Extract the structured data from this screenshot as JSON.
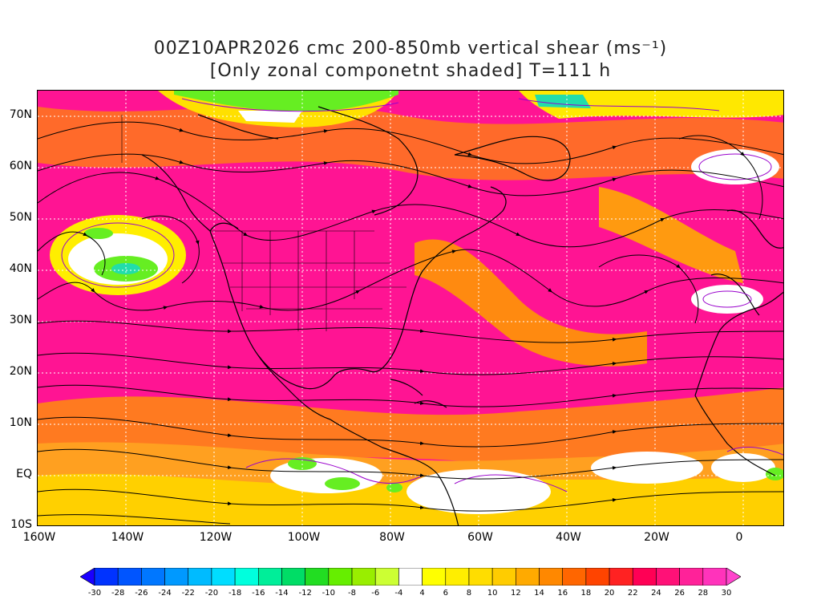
{
  "title_line1": "00Z10APR2026 cmc 200-850mb vertical shear (ms⁻¹)",
  "title_line2": "[Only zonal componetnt shaded] T=111 h",
  "lat_labels": [
    "70N",
    "60N",
    "50N",
    "40N",
    "30N",
    "20N",
    "10N",
    "EQ",
    "10S"
  ],
  "lon_labels": [
    "160W",
    "140W",
    "120W",
    "100W",
    "80W",
    "60W",
    "40W",
    "20W",
    "0"
  ],
  "colorbar": {
    "labels": [
      "-30",
      "-28",
      "-26",
      "-24",
      "-22",
      "-20",
      "-18",
      "-16",
      "-14",
      "-12",
      "-10",
      "-8",
      "-6",
      "-4",
      "4",
      "6",
      "8",
      "10",
      "12",
      "14",
      "16",
      "18",
      "20",
      "22",
      "24",
      "26",
      "28",
      "30"
    ],
    "colors": [
      "#1a00ff",
      "#0033ff",
      "#0055ff",
      "#0077ff",
      "#0099ff",
      "#00bbff",
      "#00ddff",
      "#00ffdd",
      "#00ee99",
      "#00dd66",
      "#22dd22",
      "#66ee00",
      "#99ee00",
      "#ccff33",
      "#ffffff",
      "#ffff00",
      "#ffee00",
      "#ffdd00",
      "#ffcc00",
      "#ffaa00",
      "#ff8800",
      "#ff6600",
      "#ff4400",
      "#ff2222",
      "#ff0055",
      "#ff1177",
      "#ff2299",
      "#ff33bb",
      "#ff44cc"
    ]
  }
}
